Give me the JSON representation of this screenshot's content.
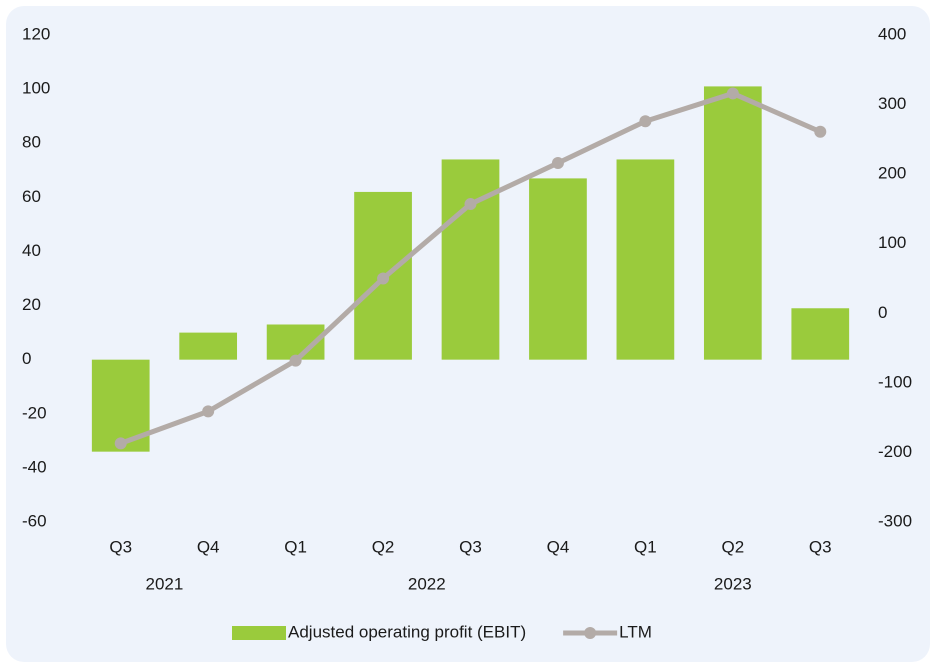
{
  "chart_data": {
    "type": "bar_line",
    "categories": [
      "Q3",
      "Q4",
      "Q1",
      "Q2",
      "Q3",
      "Q4",
      "Q1",
      "Q2",
      "Q3"
    ],
    "category_groups": [
      {
        "label": "2021",
        "count": 2
      },
      {
        "label": "2022",
        "count": 4
      },
      {
        "label": "2023",
        "count": 3
      }
    ],
    "series": [
      {
        "name": "Adjusted operating profit (EBIT)",
        "type": "bar",
        "color": "#9acb3c",
        "values": [
          -34,
          10,
          13,
          62,
          74,
          67,
          74,
          101,
          19
        ]
      },
      {
        "name": "LTM",
        "type": "line",
        "axis": "y2",
        "color": "#b3aba7",
        "values": [
          -187,
          -141,
          -68,
          50,
          157,
          216,
          276,
          316,
          261
        ]
      }
    ],
    "ylim": [
      -60,
      120
    ],
    "yticks": [
      -60,
      -40,
      -20,
      0,
      20,
      40,
      60,
      80,
      100,
      120
    ],
    "y2lim": [
      -300,
      400
    ],
    "y2ticks": [
      -300,
      -200,
      -100,
      0,
      100,
      200,
      300,
      400
    ],
    "legend": "bottom"
  }
}
